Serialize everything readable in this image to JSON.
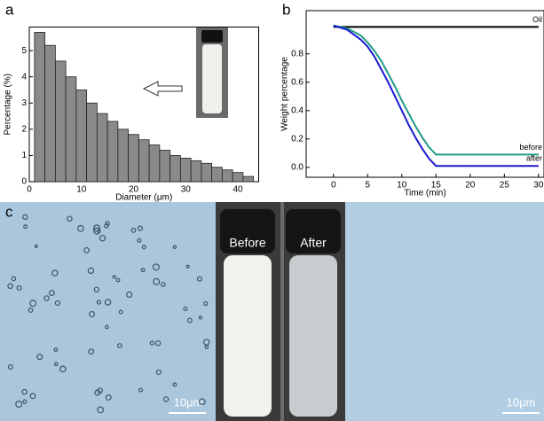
{
  "panel_labels": [
    "a",
    "b",
    "c"
  ],
  "chart_data": [
    {
      "type": "histogram",
      "xlabel": "Diameter (μm)",
      "ylabel": "Percentage (%)",
      "bins": [
        1,
        3,
        5,
        7,
        9,
        11,
        13,
        15,
        17,
        19,
        21,
        23,
        25,
        27,
        29,
        31,
        33,
        35,
        37,
        39,
        41,
        43
      ],
      "values": [
        5.7,
        5.2,
        4.6,
        4.0,
        3.5,
        3.0,
        2.6,
        2.3,
        2.0,
        1.8,
        1.6,
        1.4,
        1.2,
        1.0,
        0.9,
        0.8,
        0.7,
        0.55,
        0.45,
        0.35,
        0.2
      ],
      "color": "#8a8a8a",
      "xlim": [
        0,
        44
      ],
      "ylim": [
        0,
        5.9
      ],
      "xticks": [
        0,
        10,
        20,
        30,
        40
      ],
      "yticks": [
        0,
        1,
        2,
        3,
        4,
        5
      ]
    },
    {
      "type": "line",
      "xlabel": "Time (min)",
      "ylabel": "Weight percentage",
      "x": [
        0,
        2,
        4,
        5,
        6,
        7,
        8,
        9,
        10,
        11,
        12,
        13,
        14,
        15,
        20,
        25,
        30
      ],
      "series": [
        {
          "name": "Oil",
          "color": "#000000",
          "values": [
            0.99,
            0.99,
            0.99,
            0.99,
            0.99,
            0.99,
            0.99,
            0.99,
            0.99,
            0.99,
            0.99,
            0.99,
            0.99,
            0.99,
            0.99,
            0.99,
            0.99
          ]
        },
        {
          "name": "before",
          "color": "#1f9a86",
          "values": [
            1.0,
            0.98,
            0.93,
            0.88,
            0.82,
            0.75,
            0.66,
            0.57,
            0.47,
            0.38,
            0.29,
            0.21,
            0.14,
            0.09,
            0.09,
            0.09,
            0.09
          ]
        },
        {
          "name": "after",
          "color": "#1a1ad0",
          "values": [
            1.0,
            0.97,
            0.9,
            0.85,
            0.78,
            0.69,
            0.6,
            0.5,
            0.4,
            0.3,
            0.21,
            0.13,
            0.06,
            0.01,
            0.01,
            0.01,
            0.01
          ]
        }
      ],
      "xlim": [
        -4,
        30.8
      ],
      "ylim": [
        -0.07,
        1.105
      ],
      "xticks": [
        0,
        5,
        10,
        15,
        20,
        25,
        30
      ],
      "yticks": [
        {
          "value": 0,
          "label": "0.0"
        },
        0.2,
        0.4,
        0.6,
        0.8
      ]
    }
  ],
  "photo": {
    "before": "Before",
    "after": "After",
    "scale_bars": [
      "10μm",
      "10μm"
    ]
  }
}
